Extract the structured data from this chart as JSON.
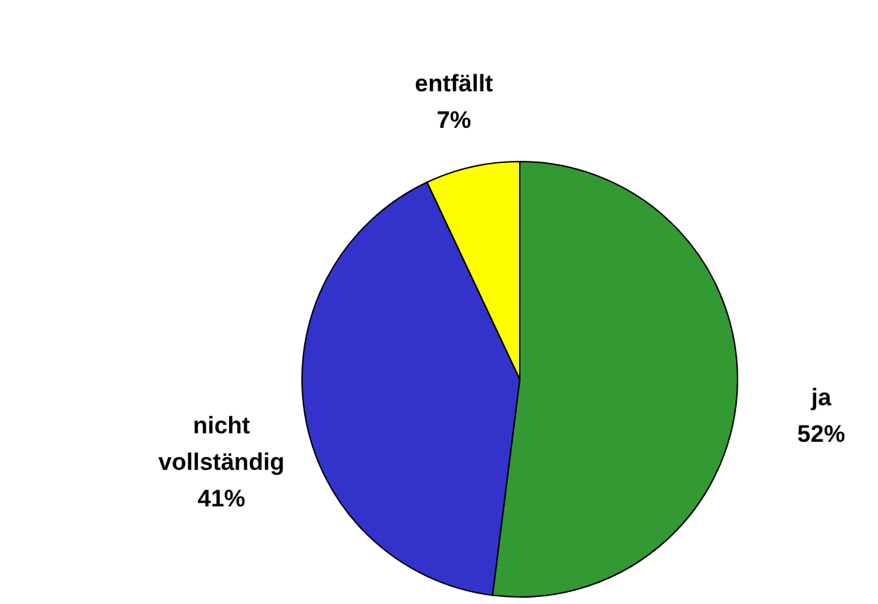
{
  "chart_data": {
    "type": "pie",
    "categories": [
      "ja",
      "nicht vollständig",
      "entfällt"
    ],
    "values": [
      52,
      41,
      7
    ],
    "colors": [
      "#339933",
      "#3333cc",
      "#ffff00"
    ],
    "value_labels": [
      "52%",
      "41%",
      "7%"
    ]
  }
}
